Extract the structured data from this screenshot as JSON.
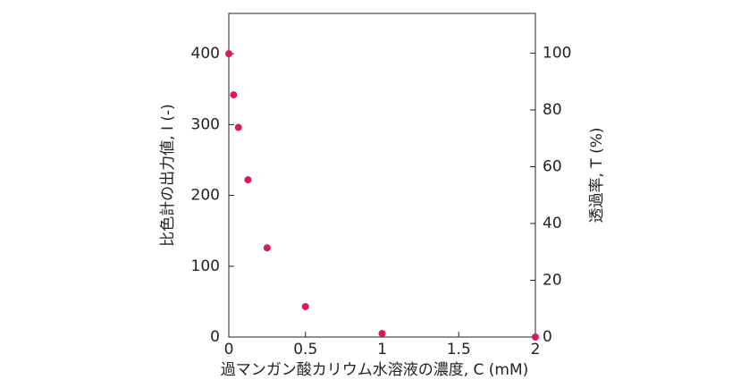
{
  "chart_data": {
    "type": "scatter",
    "xlabel": "過マンガン酸カリウム水溶液の濃度, C (mM)",
    "ylabel": "比色計の出力値, I (-)",
    "y2label": "透過率, T (%)",
    "x": [
      0,
      0.03125,
      0.0625,
      0.125,
      0.25,
      0.5,
      1,
      2
    ],
    "series": [
      {
        "color": "#d81b5a",
        "values": [
          400,
          342,
          296,
          222,
          126,
          43,
          5,
          0
        ]
      }
    ],
    "xlim": [
      0,
      2
    ],
    "xticks": [
      0,
      0.5,
      1,
      1.5,
      2
    ],
    "ylim": [
      0,
      457
    ],
    "yticks": [
      0,
      100,
      200,
      300,
      400
    ],
    "y2lim": [
      0,
      114
    ],
    "y2ticks": [
      0,
      20,
      40,
      60,
      80,
      100
    ]
  }
}
